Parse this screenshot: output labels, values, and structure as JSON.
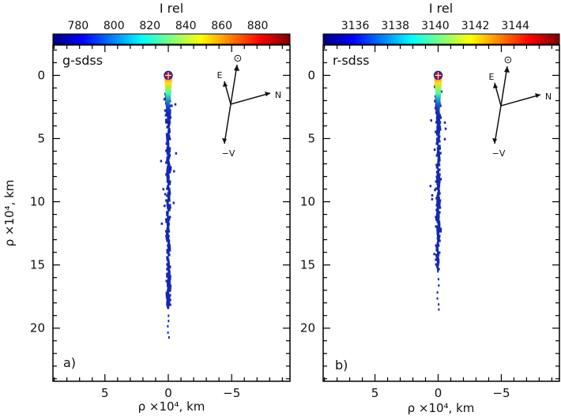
{
  "chart_data": [
    {
      "type": "heatmap",
      "panel_label": "a)",
      "filter": "g-sdss",
      "colorbar": {
        "title": "I rel",
        "ticks": [
          780,
          800,
          820,
          840,
          860,
          880
        ],
        "range": [
          766,
          898
        ]
      },
      "xlabel": "ρ ×10⁴,  km",
      "ylabel": "ρ ×10⁴,  km",
      "xlim": [
        9.1,
        -9.6
      ],
      "ylim": [
        24.2,
        -2.4
      ],
      "xticks": [
        5,
        0,
        -5
      ],
      "xtick_labels": [
        "5",
        "0",
        "−5"
      ],
      "yticks": [
        0,
        5,
        10,
        15,
        20
      ],
      "ytick_labels": [
        "0",
        "5",
        "10",
        "15",
        "20"
      ],
      "tail_extent": [
        0,
        20.8
      ],
      "nucleus": [
        0,
        0
      ],
      "compass": {
        "sun": "⊙",
        "east": "E",
        "north": "N",
        "velocity": "−V"
      }
    },
    {
      "type": "heatmap",
      "panel_label": "b)",
      "filter": "r-sdss",
      "colorbar": {
        "title": "I rel",
        "ticks": [
          3136,
          3138,
          3140,
          3142,
          3144
        ],
        "range": [
          3134.4,
          3146.2
        ]
      },
      "xlabel": "ρ ×10⁴,  km",
      "ylabel": "",
      "xlim": [
        9.1,
        -9.6
      ],
      "ylim": [
        24.2,
        -2.4
      ],
      "xticks": [
        5,
        0,
        -5
      ],
      "xtick_labels": [
        "5",
        "0",
        "−5"
      ],
      "yticks": [
        0,
        5,
        10,
        15,
        20
      ],
      "ytick_labels": [
        "0",
        "5",
        "10",
        "15",
        "20"
      ],
      "tail_extent": [
        0,
        18.8
      ],
      "nucleus": [
        0,
        0
      ],
      "compass": {
        "sun": "⊙",
        "east": "E",
        "north": "N",
        "velocity": "−V"
      }
    }
  ],
  "colors": {
    "jet": [
      "#00007f",
      "#0000ff",
      "#007fff",
      "#00ffff",
      "#7fff7f",
      "#ffff00",
      "#ff7f00",
      "#ff0000",
      "#7f0000"
    ],
    "tail": "#1428b4"
  }
}
